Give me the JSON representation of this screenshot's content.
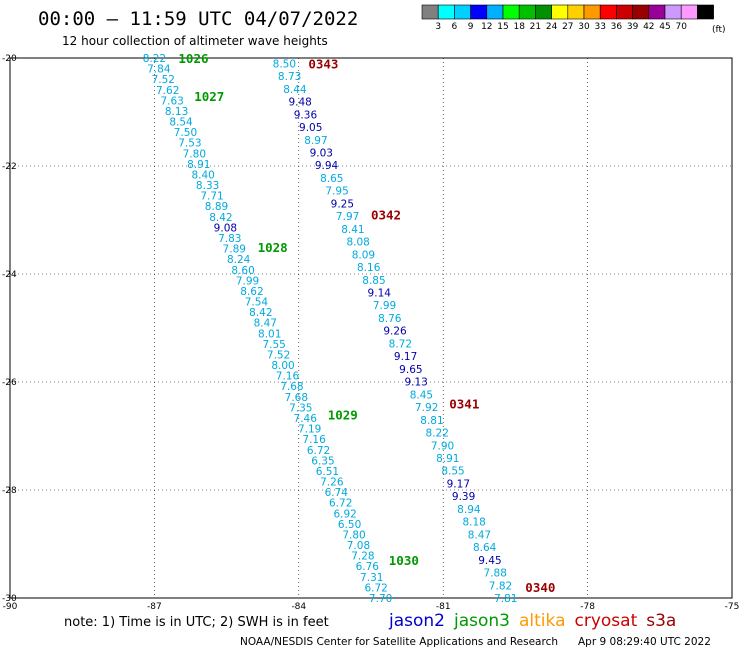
{
  "header": {
    "title": "00:00 – 11:59 UTC 04/07/2022",
    "subtitle": "12 hour collection of altimeter wave heights"
  },
  "colorbar": {
    "unit": "(ft)",
    "colors": [
      "#808080",
      "#00ffff",
      "#00d0ff",
      "#0000ff",
      "#00b0ff",
      "#00ff00",
      "#00c000",
      "#009000",
      "#ffff00",
      "#ffd000",
      "#ff9900",
      "#ff0000",
      "#cc0000",
      "#990000",
      "#990099",
      "#cc99ff",
      "#ff99ff",
      "#000000"
    ],
    "labels": [
      "3",
      "6",
      "9",
      "12",
      "15",
      "18",
      "21",
      "24",
      "27",
      "30",
      "33",
      "36",
      "39",
      "42",
      "45",
      "70"
    ]
  },
  "footer": {
    "note": "note: 1) Time is in UTC; 2) SWH is in feet",
    "legend": [
      {
        "name": "jason2",
        "color": "#0000cc"
      },
      {
        "name": "jason3",
        "color": "#009900"
      },
      {
        "name": "altika",
        "color": "#ff9900"
      },
      {
        "name": "cryosat",
        "color": "#cc0000"
      },
      {
        "name": "s3a",
        "color": "#990000"
      }
    ],
    "credit": "NOAA/NESDIS Center for Satellite Applications and Research",
    "timestamp": "Apr  9 08:29:40 UTC 2022"
  },
  "chart_data": {
    "type": "scatter",
    "xlim": [
      -90,
      -75
    ],
    "ylim": [
      -30,
      -20
    ],
    "xticks": [
      -90,
      -87,
      -84,
      -81,
      -78,
      -75
    ],
    "yticks": [
      -20,
      -22,
      -24,
      -26,
      -28,
      -30
    ],
    "grid": true,
    "value_colors": {
      "light": "#00aadd",
      "dark": "#0000aa"
    },
    "series": [
      {
        "name": "jason3",
        "start": [
          -87.0,
          -20.0
        ],
        "end": [
          -82.3,
          -30.0
        ],
        "values": [
          "8.22",
          "7.84",
          "7.52",
          "7.62",
          "7.63",
          "8.13",
          "8.54",
          "7.50",
          "7.53",
          "7.80",
          "8.91",
          "8.40",
          "8.33",
          "7.71",
          "8.89",
          "8.42",
          "9.08",
          "7.83",
          "7.89",
          "8.24",
          "8.60",
          "7.99",
          "8.62",
          "7.54",
          "8.42",
          "8.47",
          "8.01",
          "7.55",
          "7.52",
          "8.00",
          "7.16",
          "7.68",
          "7.68",
          "7.35",
          "7.46",
          "7.19",
          "7.16",
          "6.72",
          "6.35",
          "6.51",
          "7.26",
          "6.74",
          "6.72",
          "6.92",
          "6.50",
          "7.80",
          "7.08",
          "7.28",
          "6.76",
          "7.31",
          "6.72",
          "7.70"
        ],
        "times": [
          {
            "label": "1026",
            "lat": -20.0,
            "color": "#009900"
          },
          {
            "label": "1027",
            "lat": -20.7,
            "color": "#009900"
          },
          {
            "label": "1028",
            "lat": -23.5,
            "color": "#009900"
          },
          {
            "label": "1029",
            "lat": -26.6,
            "color": "#009900"
          },
          {
            "label": "1030",
            "lat": -29.3,
            "color": "#009900"
          }
        ]
      },
      {
        "name": "s3a",
        "start": [
          -84.3,
          -20.1
        ],
        "end": [
          -79.7,
          -30.0
        ],
        "values": [
          "8.50",
          "8.73",
          "8.44",
          "9.48",
          "9.36",
          "9.05",
          "8.97",
          "9.03",
          "9.94",
          "8.65",
          "7.95",
          "9.25",
          "7.97",
          "8.41",
          "8.08",
          "8.09",
          "8.16",
          "8.85",
          "9.14",
          "7.99",
          "8.76",
          "9.26",
          "8.72",
          "9.17",
          "9.65",
          "9.13",
          "8.45",
          "7.92",
          "8.81",
          "8.22",
          "7.90",
          "8.91",
          "8.55",
          "9.17",
          "9.39",
          "8.94",
          "8.18",
          "8.47",
          "8.64",
          "9.45",
          "7.88",
          "7.82",
          "7.81"
        ],
        "times": [
          {
            "label": "0343",
            "lat": -20.1,
            "color": "#990000"
          },
          {
            "label": "0342",
            "lat": -22.9,
            "color": "#990000"
          },
          {
            "label": "0341",
            "lat": -26.4,
            "color": "#990000"
          },
          {
            "label": "0340",
            "lat": -29.8,
            "color": "#990000"
          }
        ]
      }
    ]
  }
}
